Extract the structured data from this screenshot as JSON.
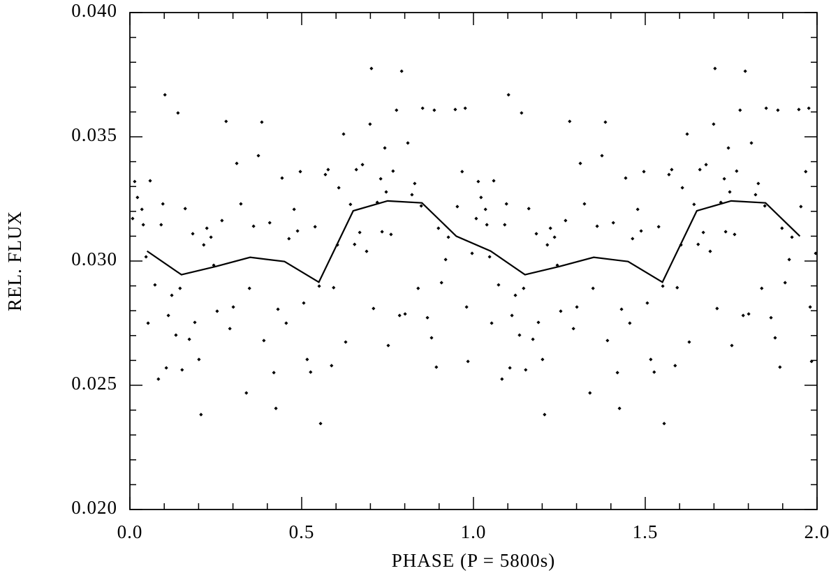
{
  "chart_data": {
    "type": "scatter",
    "xlabel": "PHASE (P = 5800s)",
    "ylabel": "REL. FLUX",
    "xlim": [
      0,
      2
    ],
    "ylim": [
      0.02,
      0.04
    ],
    "xticks": [
      {
        "value": 0,
        "label": "0.0"
      },
      0.5,
      {
        "value": 1,
        "label": "1.0"
      },
      1.5,
      {
        "value": 2,
        "label": "2.0"
      }
    ],
    "yticks": [
      {
        "value": 0.02,
        "label": "0.020"
      },
      {
        "value": 0.025,
        "label": "0.025"
      },
      {
        "value": 0.03,
        "label": "0.030"
      },
      {
        "value": 0.035,
        "label": "0.035"
      },
      {
        "value": 0.04,
        "label": "0.040"
      }
    ],
    "xminorticks": [
      0.1,
      0.2,
      0.3,
      0.4,
      0.6,
      0.7,
      0.8,
      0.9,
      1.1,
      1.2,
      1.3,
      1.4,
      1.6,
      1.7,
      1.8,
      1.9
    ],
    "yminorticks": [
      0.021,
      0.022,
      0.023,
      0.024,
      0.026,
      0.027,
      0.028,
      0.029,
      0.031,
      0.032,
      0.033,
      0.034,
      0.036,
      0.037,
      0.038,
      0.039
    ],
    "color": "#000000",
    "series": [
      {
        "type": "scatter",
        "color": "#000000",
        "x": [
          0.008,
          0.014,
          0.022,
          0.035,
          0.039,
          0.047,
          0.053,
          0.059,
          0.073,
          0.083,
          0.091,
          0.096,
          0.102,
          0.106,
          0.112,
          0.122,
          0.134,
          0.14,
          0.146,
          0.152,
          0.161,
          0.173,
          0.183,
          0.189,
          0.201,
          0.207,
          0.215,
          0.224,
          0.236,
          0.244,
          0.254,
          0.268,
          0.28,
          0.291,
          0.301,
          0.311,
          0.323,
          0.339,
          0.348,
          0.36,
          0.374,
          0.384,
          0.39,
          0.407,
          0.419,
          0.425,
          0.431,
          0.443,
          0.455,
          0.463,
          0.478,
          0.488,
          0.496,
          0.506,
          0.516,
          0.526,
          0.539,
          0.551,
          0.555,
          0.569,
          0.577,
          0.587,
          0.593,
          0.604,
          0.608,
          0.622,
          0.628,
          0.642,
          0.654,
          0.659,
          0.669,
          0.677,
          0.689,
          0.699,
          0.703,
          0.709,
          0.72,
          0.73,
          0.734,
          0.742,
          0.746,
          0.752,
          0.76,
          0.766,
          0.776,
          0.785,
          0.791,
          0.801,
          0.809,
          0.821,
          0.829,
          0.839,
          0.848,
          0.852,
          0.866,
          0.878,
          0.886,
          0.892,
          0.898,
          0.907,
          0.919,
          0.927,
          0.947,
          0.953,
          0.967,
          0.976,
          0.98,
          0.984,
          0.996,
          1.008,
          1.014,
          1.022,
          1.035,
          1.039,
          1.047,
          1.053,
          1.059,
          1.073,
          1.083,
          1.091,
          1.096,
          1.102,
          1.106,
          1.112,
          1.122,
          1.134,
          1.14,
          1.146,
          1.152,
          1.161,
          1.173,
          1.183,
          1.189,
          1.201,
          1.207,
          1.215,
          1.224,
          1.236,
          1.244,
          1.254,
          1.268,
          1.28,
          1.291,
          1.301,
          1.311,
          1.323,
          1.339,
          1.348,
          1.36,
          1.374,
          1.384,
          1.39,
          1.407,
          1.419,
          1.425,
          1.431,
          1.443,
          1.455,
          1.463,
          1.478,
          1.488,
          1.496,
          1.506,
          1.516,
          1.526,
          1.539,
          1.551,
          1.555,
          1.569,
          1.577,
          1.587,
          1.593,
          1.604,
          1.608,
          1.622,
          1.628,
          1.642,
          1.654,
          1.659,
          1.669,
          1.677,
          1.689,
          1.699,
          1.703,
          1.709,
          1.72,
          1.73,
          1.734,
          1.742,
          1.746,
          1.752,
          1.76,
          1.766,
          1.776,
          1.785,
          1.791,
          1.801,
          1.809,
          1.821,
          1.829,
          1.839,
          1.848,
          1.852,
          1.866,
          1.878,
          1.886,
          1.892,
          1.898,
          1.907,
          1.919,
          1.927,
          1.947,
          1.953,
          1.967,
          1.976,
          1.98,
          1.984,
          1.996
        ],
        "values": [
          0.03171,
          0.0332,
          0.03256,
          0.03208,
          0.03146,
          0.03017,
          0.0275,
          0.03323,
          0.02904,
          0.02525,
          0.03146,
          0.0323,
          0.03669,
          0.0257,
          0.02781,
          0.02862,
          0.02702,
          0.03596,
          0.0289,
          0.02562,
          0.03211,
          0.02685,
          0.0311,
          0.02753,
          0.02604,
          0.02382,
          0.03065,
          0.03132,
          0.03096,
          0.02983,
          0.02798,
          0.03163,
          0.03562,
          0.02728,
          0.02815,
          0.03393,
          0.0323,
          0.02469,
          0.0289,
          0.0314,
          0.03424,
          0.03559,
          0.0268,
          0.03154,
          0.02551,
          0.02407,
          0.02806,
          0.03334,
          0.0275,
          0.0309,
          0.03208,
          0.03121,
          0.0336,
          0.02831,
          0.02604,
          0.02553,
          0.03138,
          0.02899,
          0.02346,
          0.03348,
          0.03368,
          0.02579,
          0.02893,
          0.03065,
          0.03295,
          0.03511,
          0.02674,
          0.03228,
          0.03067,
          0.03368,
          0.03115,
          0.03388,
          0.03039,
          0.03551,
          0.03775,
          0.02809,
          0.03236,
          0.03331,
          0.03118,
          0.03455,
          0.03278,
          0.0266,
          0.03107,
          0.03362,
          0.03607,
          0.02781,
          0.03764,
          0.02787,
          0.03475,
          0.03267,
          0.03312,
          0.0289,
          0.03222,
          0.03615,
          0.02772,
          0.02691,
          0.03607,
          0.02573,
          0.03132,
          0.02913,
          0.03006,
          0.03096,
          0.0361,
          0.03219,
          0.0336,
          0.03615,
          0.02815,
          0.02596,
          0.03031,
          0.03171,
          0.0332,
          0.03256,
          0.03208,
          0.03146,
          0.03017,
          0.0275,
          0.03323,
          0.02904,
          0.02525,
          0.03146,
          0.0323,
          0.03669,
          0.0257,
          0.02781,
          0.02862,
          0.02702,
          0.03596,
          0.0289,
          0.02562,
          0.03211,
          0.02685,
          0.0311,
          0.02753,
          0.02604,
          0.02382,
          0.03065,
          0.03132,
          0.03096,
          0.02983,
          0.02798,
          0.03163,
          0.03562,
          0.02728,
          0.02815,
          0.03393,
          0.0323,
          0.02469,
          0.0289,
          0.0314,
          0.03424,
          0.03559,
          0.0268,
          0.03154,
          0.02551,
          0.02407,
          0.02806,
          0.03334,
          0.0275,
          0.0309,
          0.03208,
          0.03121,
          0.0336,
          0.02831,
          0.02604,
          0.02553,
          0.03138,
          0.02899,
          0.02346,
          0.03348,
          0.03368,
          0.02579,
          0.02893,
          0.03065,
          0.03295,
          0.03511,
          0.02674,
          0.03228,
          0.03067,
          0.03368,
          0.03115,
          0.03388,
          0.03039,
          0.03551,
          0.03775,
          0.02809,
          0.03236,
          0.03331,
          0.03118,
          0.03455,
          0.03278,
          0.0266,
          0.03107,
          0.03362,
          0.03607,
          0.02781,
          0.03764,
          0.02787,
          0.03475,
          0.03267,
          0.03312,
          0.0289,
          0.03222,
          0.03615,
          0.02772,
          0.02691,
          0.03607,
          0.02573,
          0.03132,
          0.02913,
          0.03006,
          0.03096,
          0.0361,
          0.03219,
          0.0336,
          0.03615,
          0.02815,
          0.02596,
          0.03031
        ]
      },
      {
        "type": "line",
        "color": "#000000",
        "x": [
          0.05,
          0.15,
          0.25,
          0.35,
          0.45,
          0.55,
          0.65,
          0.75,
          0.85,
          0.95,
          1.05,
          1.15,
          1.25,
          1.35,
          1.45,
          1.55,
          1.65,
          1.75,
          1.85,
          1.95
        ],
        "values": [
          0.0304,
          0.02945,
          0.02978,
          0.03015,
          0.02998,
          0.02915,
          0.03202,
          0.03242,
          0.03234,
          0.031,
          0.0304,
          0.02945,
          0.02978,
          0.03015,
          0.02998,
          0.02915,
          0.03202,
          0.03242,
          0.03234,
          0.031
        ]
      }
    ]
  }
}
